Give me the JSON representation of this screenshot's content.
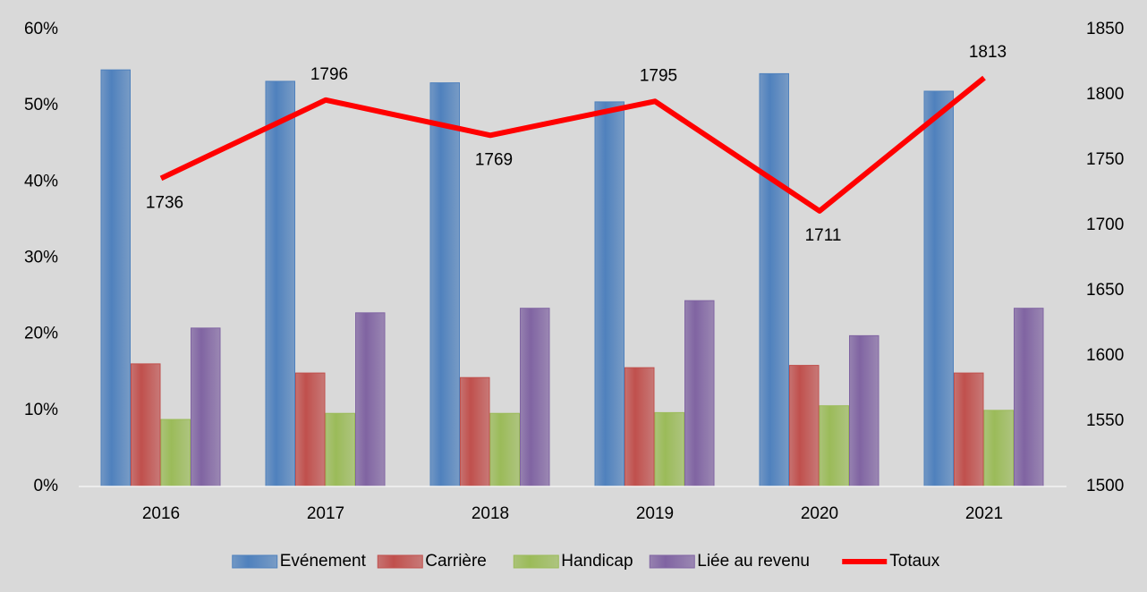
{
  "chart_data": {
    "type": "bar",
    "categories": [
      "2016",
      "2017",
      "2018",
      "2019",
      "2020",
      "2021"
    ],
    "series": [
      {
        "name": "Evénement",
        "color": "#4f81bd",
        "values": [
          54.7,
          53.2,
          53.0,
          50.5,
          54.2,
          51.9
        ]
      },
      {
        "name": "Carrière",
        "color": "#c0504d",
        "values": [
          16.1,
          14.9,
          14.3,
          15.6,
          15.9,
          14.9
        ]
      },
      {
        "name": "Handicap",
        "color": "#9bbb59",
        "values": [
          8.8,
          9.6,
          9.6,
          9.7,
          10.6,
          10.0
        ]
      },
      {
        "name": "Liée au revenu",
        "color": "#8064a2",
        "values": [
          20.8,
          22.8,
          23.4,
          24.4,
          19.8,
          23.4
        ]
      },
      {
        "name": "Totaux",
        "type": "line",
        "axis": "y2",
        "color": "#ff0000",
        "values": [
          1736,
          1796,
          1769,
          1795,
          1711,
          1813
        ]
      }
    ],
    "ylim": [
      0,
      60
    ],
    "yticks": [
      {
        "value": 0,
        "label": "0%"
      },
      {
        "value": 10,
        "label": "10%"
      },
      {
        "value": 20,
        "label": "20%"
      },
      {
        "value": 30,
        "label": "30%"
      },
      {
        "value": 40,
        "label": "40%"
      },
      {
        "value": 50,
        "label": "50%"
      },
      {
        "value": 60,
        "label": "60%"
      }
    ],
    "y2lim": [
      1500,
      1850
    ],
    "y2ticks": [
      1500,
      1550,
      1600,
      1650,
      1700,
      1750,
      1800,
      1850
    ],
    "grid": false,
    "legend": "bottom"
  }
}
